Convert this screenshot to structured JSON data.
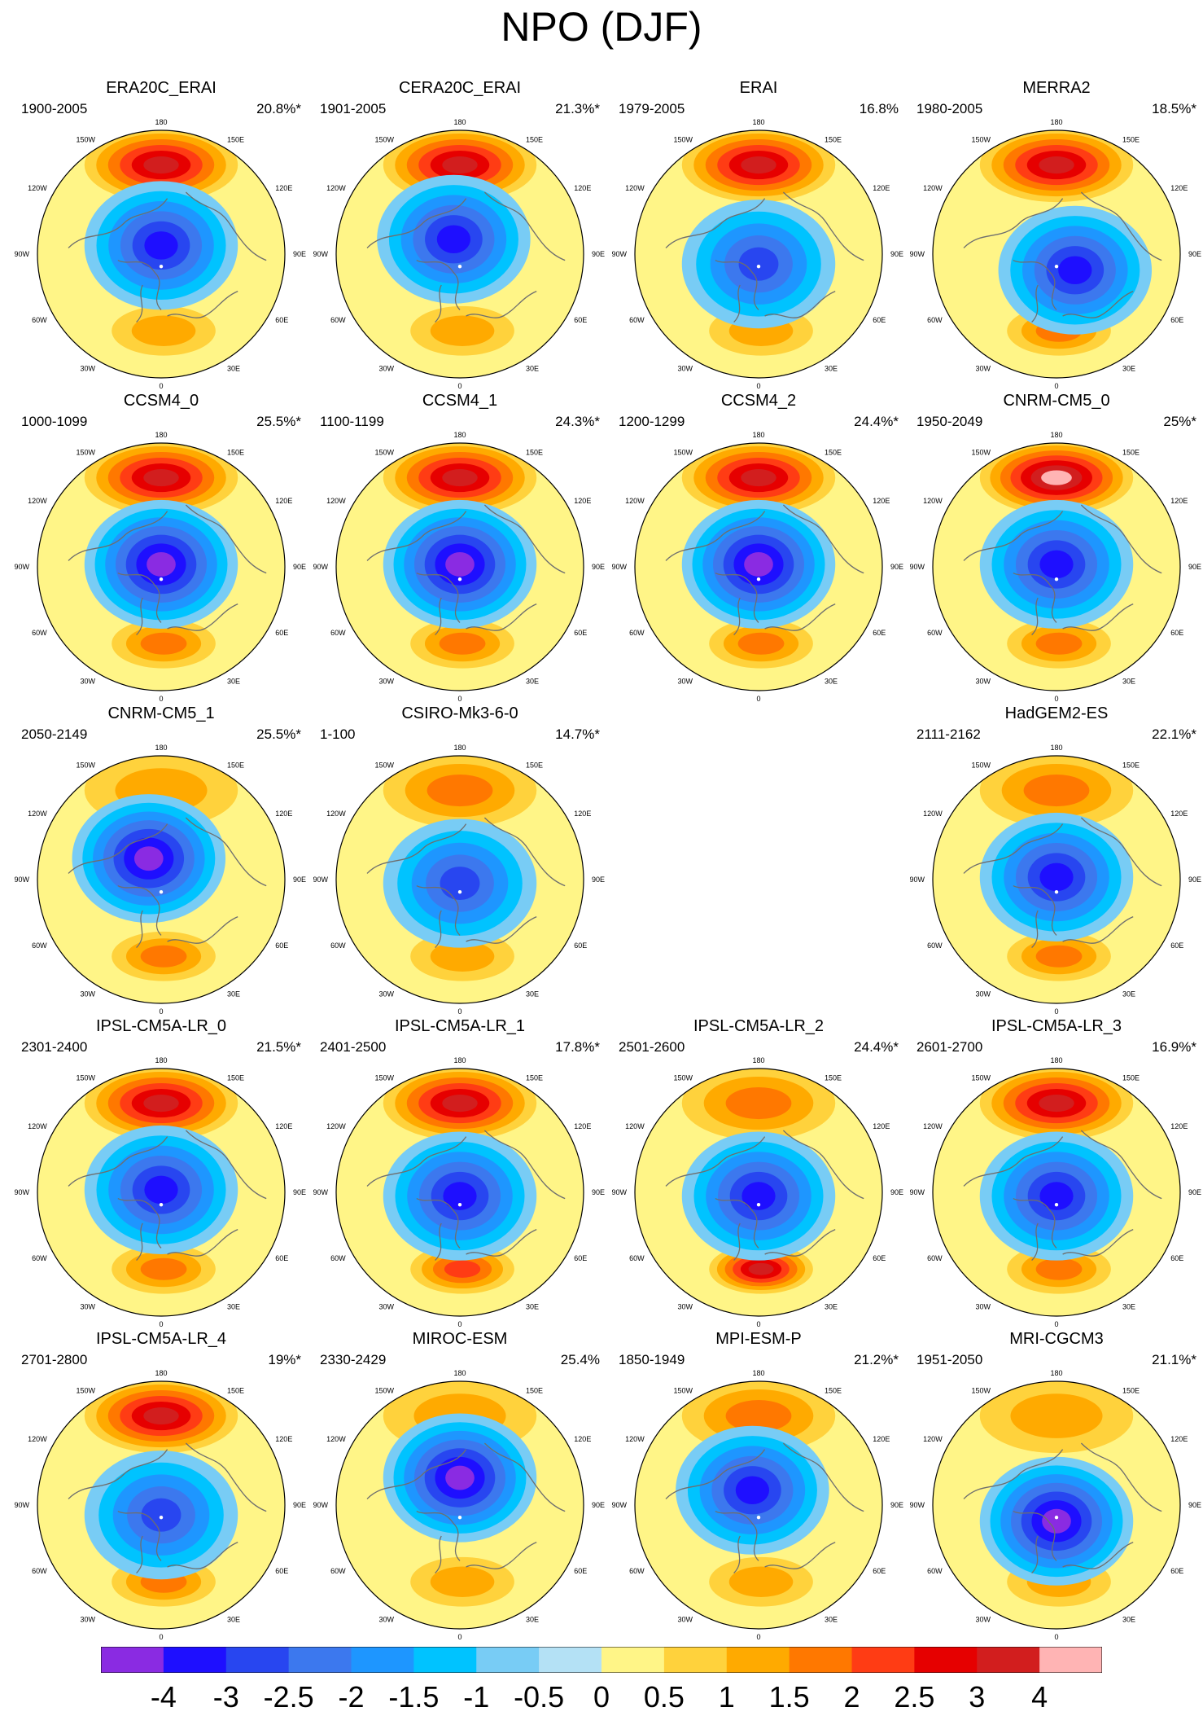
{
  "title": "NPO (DJF)",
  "chart_data": {
    "type": "heatmap",
    "title": "NPO (DJF)",
    "projection": "north-polar-stereographic",
    "longitude_labels": [
      "180",
      "150E",
      "120E",
      "90E",
      "60E",
      "30E",
      "0",
      "30W",
      "60W",
      "90W",
      "120W",
      "150W"
    ],
    "colorbar": {
      "levels": [
        "-4",
        "-3",
        "-2.5",
        "-2",
        "-1.5",
        "-1",
        "-0.5",
        "0",
        "0.5",
        "1",
        "1.5",
        "2",
        "2.5",
        "3",
        "4"
      ],
      "colors": [
        "#8a2be2",
        "#1e0fff",
        "#2846f0",
        "#3c78ee",
        "#1e96ff",
        "#00c3ff",
        "#78ccf5",
        "#b4e1f5",
        "#fff587",
        "#ffd23c",
        "#ffaa00",
        "#ff7800",
        "#ff3c14",
        "#e60000",
        "#d21e1e",
        "#ffb4b4"
      ]
    },
    "panels": [
      {
        "name": "ERA20C_ERAI",
        "period": "1900-2005",
        "variance": "20.8%*",
        "row": 0,
        "col": 0,
        "pac": 3,
        "low": -3,
        "atl": 1,
        "cx": 0.0,
        "cy": -0.15
      },
      {
        "name": "CERA20C_ERAI",
        "period": "1901-2005",
        "variance": "21.3%*",
        "row": 0,
        "col": 1,
        "pac": 3,
        "low": -3,
        "atl": 1,
        "cx": -0.05,
        "cy": -0.2
      },
      {
        "name": "ERAI",
        "period": "1979-2005",
        "variance": "16.8%",
        "row": 0,
        "col": 2,
        "pac": 3,
        "low": -2.5,
        "atl": 1,
        "cx": 0.0,
        "cy": 0.0
      },
      {
        "name": "MERRA2",
        "period": "1980-2005",
        "variance": "18.5%*",
        "row": 0,
        "col": 3,
        "pac": 3,
        "low": -3,
        "atl": 1.5,
        "cx": 0.15,
        "cy": 0.05
      },
      {
        "name": "CCSM4_0",
        "period": "1000-1099",
        "variance": "25.5%*",
        "row": 1,
        "col": 0,
        "pac": 3,
        "low": -4,
        "atl": 1.5,
        "cx": 0.0,
        "cy": -0.1
      },
      {
        "name": "CCSM4_1",
        "period": "1100-1199",
        "variance": "24.3%*",
        "row": 1,
        "col": 1,
        "pac": 3,
        "low": -4,
        "atl": 1.5,
        "cx": 0.0,
        "cy": -0.1
      },
      {
        "name": "CCSM4_2",
        "period": "1200-1299",
        "variance": "24.4%*",
        "row": 1,
        "col": 2,
        "pac": 3.5,
        "low": -4,
        "atl": 1.5,
        "cx": 0.0,
        "cy": -0.1
      },
      {
        "name": "CNRM-CM5_0",
        "period": "1950-2049",
        "variance": "25%*",
        "row": 1,
        "col": 3,
        "pac": 4,
        "low": -3,
        "atl": 1.5,
        "cx": 0.0,
        "cy": -0.1
      },
      {
        "name": "CNRM-CM5_1",
        "period": "2050-2149",
        "variance": "25.5%*",
        "row": 2,
        "col": 0,
        "pac": 1,
        "low": -4,
        "atl": 1.5,
        "cx": -0.1,
        "cy": -0.25
      },
      {
        "name": "CSIRO-Mk3-6-0",
        "period": "1-100",
        "variance": "14.7%*",
        "row": 2,
        "col": 1,
        "pac": 1.5,
        "low": -2.5,
        "atl": 1,
        "cx": 0.0,
        "cy": -0.05
      },
      {
        "name": "HadGEM2-ES",
        "period": "2111-2162",
        "variance": "22.1%*",
        "row": 2,
        "col": 3,
        "pac": 1.5,
        "low": -3,
        "atl": 1.5,
        "cx": 0.0,
        "cy": -0.1
      },
      {
        "name": "IPSL-CM5A-LR_0",
        "period": "2301-2400",
        "variance": "21.5%*",
        "row": 3,
        "col": 0,
        "pac": 3,
        "low": -3,
        "atl": 1.5,
        "cx": 0.0,
        "cy": -0.1
      },
      {
        "name": "IPSL-CM5A-LR_1",
        "period": "2401-2500",
        "variance": "17.8%*",
        "row": 3,
        "col": 1,
        "pac": 3,
        "low": -3,
        "atl": 2,
        "cx": 0.0,
        "cy": -0.05
      },
      {
        "name": "IPSL-CM5A-LR_2",
        "period": "2501-2600",
        "variance": "24.4%*",
        "row": 3,
        "col": 2,
        "pac": 1.5,
        "low": -3,
        "atl": 3,
        "cx": 0.0,
        "cy": -0.05
      },
      {
        "name": "IPSL-CM5A-LR_3",
        "period": "2601-2700",
        "variance": "16.9%*",
        "row": 3,
        "col": 3,
        "pac": 3,
        "low": -3,
        "atl": 1.5,
        "cx": 0.0,
        "cy": -0.05
      },
      {
        "name": "IPSL-CM5A-LR_4",
        "period": "2701-2800",
        "variance": "19%*",
        "row": 4,
        "col": 0,
        "pac": 3.5,
        "low": -2.5,
        "atl": 1.5,
        "cx": 0.0,
        "cy": 0.0
      },
      {
        "name": "MIROC-ESM",
        "period": "2330-2429",
        "variance": "25.4%",
        "row": 4,
        "col": 1,
        "pac": 1,
        "low": -4,
        "atl": 1,
        "cx": 0.0,
        "cy": -0.3
      },
      {
        "name": "MPI-ESM-P",
        "period": "1850-1949",
        "variance": "21.2%*",
        "row": 4,
        "col": 2,
        "pac": 1.5,
        "low": -3,
        "atl": 1,
        "cx": -0.05,
        "cy": -0.2
      },
      {
        "name": "MRI-CGCM3",
        "period": "1951-2050",
        "variance": "21.1%*",
        "row": 4,
        "col": 3,
        "pac": 1,
        "low": -4,
        "atl": 1,
        "cx": 0.0,
        "cy": 0.05
      }
    ]
  }
}
